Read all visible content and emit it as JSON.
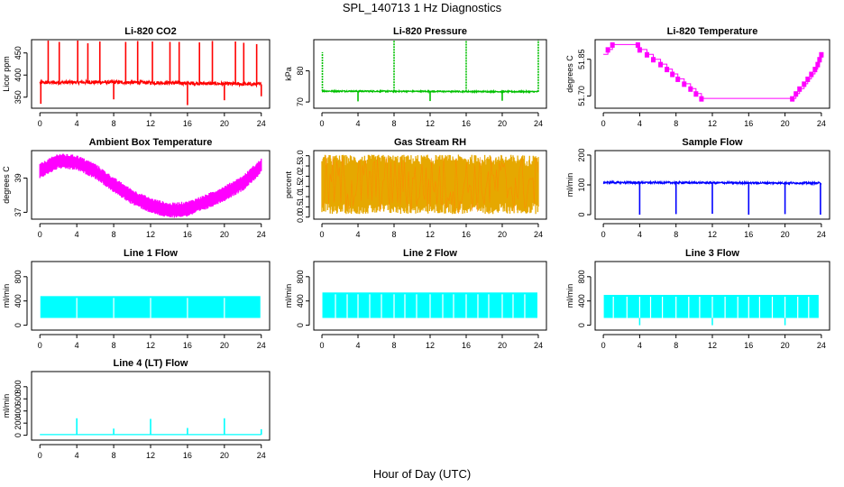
{
  "page": {
    "title": "SPL_140713  1 Hz Diagnostics",
    "xlabel": "Hour of Day (UTC)"
  },
  "chart_data": [
    {
      "id": "co2",
      "type": "line",
      "title": "Li-820 CO2",
      "ylabel": "Licor ppm",
      "color": "#ff0000",
      "xlim": [
        0,
        24
      ],
      "ylim": [
        325,
        480
      ],
      "xticks": [
        0,
        4,
        8,
        12,
        16,
        20,
        24
      ],
      "yticks": [
        350,
        400,
        450
      ],
      "baseline": [
        [
          0,
          383
        ],
        [
          6,
          384
        ],
        [
          12,
          383
        ],
        [
          18,
          381
        ],
        [
          24,
          379
        ]
      ],
      "noise": 4,
      "spikes_up": [
        [
          0.9,
          478
        ],
        [
          2.1,
          475
        ],
        [
          4.1,
          478
        ],
        [
          5.2,
          472
        ],
        [
          6.5,
          476
        ],
        [
          9.3,
          475
        ],
        [
          10.6,
          477
        ],
        [
          12.2,
          476
        ],
        [
          14.1,
          475
        ],
        [
          15.1,
          475
        ],
        [
          17.3,
          474
        ],
        [
          18.7,
          477
        ],
        [
          21.2,
          476
        ],
        [
          22.1,
          473
        ],
        [
          23.5,
          470
        ]
      ],
      "spikes_down": [
        [
          0.1,
          335
        ],
        [
          8.0,
          345
        ],
        [
          16.0,
          332
        ],
        [
          20.0,
          343
        ],
        [
          24.0,
          352
        ]
      ]
    },
    {
      "id": "pressure",
      "type": "line",
      "title": "Li-820 Pressure",
      "ylabel": "kPa",
      "color": "#00c000",
      "xlim": [
        0,
        24
      ],
      "ylim": [
        68,
        90
      ],
      "xticks": [
        0,
        4,
        8,
        12,
        16,
        20,
        24
      ],
      "yticks": [
        70,
        80
      ],
      "baseline": [
        [
          0,
          73.5
        ],
        [
          24,
          73.3
        ]
      ],
      "noise": 0.2,
      "spikes_up": [
        [
          0.05,
          86
        ],
        [
          8.0,
          90
        ],
        [
          16.0,
          90
        ],
        [
          24.0,
          90
        ]
      ],
      "spikes_down": [
        [
          4.0,
          70.2
        ],
        [
          12.0,
          70.3
        ],
        [
          20.0,
          70.4
        ]
      ]
    },
    {
      "id": "li820temp",
      "type": "step",
      "title": "Li-820 Temperature",
      "ylabel": "degrees C",
      "color": "#ff00ff",
      "xlim": [
        0,
        24
      ],
      "ylim": [
        51.65,
        51.93
      ],
      "xticks": [
        0,
        4,
        8,
        12,
        16,
        20,
        24
      ],
      "yticks": [
        51.7,
        51.85
      ],
      "ytick_labels": [
        "51.70",
        "51.85"
      ],
      "points": [
        [
          0,
          51.87
        ],
        [
          0.5,
          51.89
        ],
        [
          1,
          51.91
        ],
        [
          3.8,
          51.91
        ],
        [
          4,
          51.89
        ],
        [
          4.8,
          51.87
        ],
        [
          5.5,
          51.85
        ],
        [
          6.3,
          51.83
        ],
        [
          7,
          51.81
        ],
        [
          7.6,
          51.79
        ],
        [
          8.2,
          51.77
        ],
        [
          8.9,
          51.75
        ],
        [
          9.6,
          51.73
        ],
        [
          10.2,
          51.71
        ],
        [
          10.8,
          51.69
        ],
        [
          20.8,
          51.69
        ],
        [
          21.2,
          51.71
        ],
        [
          21.6,
          51.73
        ],
        [
          22.1,
          51.75
        ],
        [
          22.5,
          51.77
        ],
        [
          22.9,
          51.79
        ],
        [
          23.3,
          51.81
        ],
        [
          23.6,
          51.83
        ],
        [
          23.8,
          51.85
        ],
        [
          24,
          51.87
        ]
      ]
    },
    {
      "id": "ambient",
      "type": "band",
      "title": "Ambient Box Temperature",
      "ylabel": "degrees C",
      "color": "#ff00ff",
      "xlim": [
        0,
        24
      ],
      "ylim": [
        36.6,
        40.6
      ],
      "xticks": [
        0,
        4,
        8,
        12,
        16,
        20,
        24
      ],
      "yticks": [
        37,
        39
      ],
      "center": [
        [
          0,
          39.4
        ],
        [
          2,
          40.0
        ],
        [
          4,
          39.9
        ],
        [
          6,
          39.4
        ],
        [
          8,
          38.6
        ],
        [
          10,
          37.9
        ],
        [
          12,
          37.4
        ],
        [
          14,
          37.1
        ],
        [
          16,
          37.2
        ],
        [
          18,
          37.6
        ],
        [
          20,
          38.1
        ],
        [
          22,
          38.7
        ],
        [
          24,
          39.7
        ]
      ],
      "half_width": 0.45
    },
    {
      "id": "rh",
      "type": "band",
      "title": "Gas Stream RH",
      "ylabel": "percent",
      "color": "#e6a800",
      "accent": "#ff8800",
      "xlim": [
        0,
        24
      ],
      "ylim": [
        -0.1,
        3.25
      ],
      "xticks": [
        0,
        4,
        8,
        12,
        16,
        20,
        24
      ],
      "yticks": [
        0.0,
        0.5,
        1.0,
        1.5,
        2.0,
        2.5,
        3.0
      ],
      "ytick_labels": [
        "0.0",
        "0.5",
        "1.0",
        "1.5",
        "2.0",
        "2.5",
        "3.0"
      ],
      "center": [
        [
          0,
          1.6
        ],
        [
          24,
          1.6
        ]
      ],
      "half_width": 1.45
    },
    {
      "id": "sampleflow",
      "type": "line",
      "title": "Sample Flow",
      "ylabel": "ml/min",
      "color": "#0000ff",
      "xlim": [
        0,
        24
      ],
      "ylim": [
        -15,
        215
      ],
      "xticks": [
        0,
        4,
        8,
        12,
        16,
        20,
        24
      ],
      "yticks": [
        0,
        100,
        200
      ],
      "baseline": [
        [
          0,
          108
        ],
        [
          24,
          106
        ]
      ],
      "noise": 3,
      "spikes_up": [],
      "spikes_down": [
        [
          4.0,
          0
        ],
        [
          8.0,
          2
        ],
        [
          12.0,
          3
        ],
        [
          16.0,
          0
        ],
        [
          20.0,
          2
        ],
        [
          23.9,
          0
        ]
      ]
    },
    {
      "id": "line1",
      "type": "block",
      "title": "Line 1 Flow",
      "ylabel": "ml/min",
      "color": "#00ffff",
      "xlim": [
        0,
        24
      ],
      "ylim": [
        -80,
        1050
      ],
      "xticks": [
        0,
        4,
        8,
        12,
        16,
        20,
        24
      ],
      "yticks": [
        0,
        400,
        800
      ],
      "lo": 120,
      "hi": 480,
      "x_range": [
        0.05,
        23.9
      ],
      "gaps": [
        4.0,
        8.0,
        12.0,
        16.0,
        20.0
      ],
      "dips": []
    },
    {
      "id": "line2",
      "type": "block",
      "title": "Line 2 Flow",
      "ylabel": "ml/min",
      "color": "#00ffff",
      "xlim": [
        0,
        24
      ],
      "ylim": [
        -80,
        1050
      ],
      "xticks": [
        0,
        4,
        8,
        12,
        16,
        20,
        24
      ],
      "yticks": [
        0,
        400,
        800
      ],
      "lo": 120,
      "hi": 540,
      "x_range": [
        0.05,
        23.9
      ],
      "gaps": [
        1.5,
        2.8,
        4.0,
        5.3,
        6.6,
        8.0,
        9.2,
        10.5,
        12.0,
        13.4,
        14.6,
        16.0,
        17.3,
        18.5,
        20.0,
        21.2,
        22.5
      ],
      "dips": []
    },
    {
      "id": "line3",
      "type": "block",
      "title": "Line 3 Flow",
      "ylabel": "ml/min",
      "color": "#00ffff",
      "xlim": [
        0,
        24
      ],
      "ylim": [
        -80,
        1050
      ],
      "xticks": [
        0,
        4,
        8,
        12,
        16,
        20,
        24
      ],
      "yticks": [
        0,
        400,
        800
      ],
      "lo": 120,
      "hi": 500,
      "x_range": [
        0.05,
        23.7
      ],
      "gaps": [
        1.1,
        2.6,
        4.0,
        5.2,
        6.5,
        8.0,
        9.4,
        10.6,
        12.0,
        13.4,
        14.8,
        16.0,
        17.2,
        18.6,
        20.0,
        21.4,
        22.6
      ],
      "dips": [
        4.0,
        12.0,
        20.0
      ]
    },
    {
      "id": "line4",
      "type": "line",
      "title": "Line 4 (LT) Flow",
      "ylabel": "ml/min",
      "color": "#00ffff",
      "xlim": [
        0,
        24
      ],
      "ylim": [
        -80,
        1050
      ],
      "xticks": [
        0,
        4,
        8,
        12,
        16,
        20,
        24
      ],
      "yticks": [
        0,
        200,
        400,
        600,
        800
      ],
      "baseline": [
        [
          0,
          10
        ],
        [
          24,
          10
        ]
      ],
      "noise": 0,
      "spikes_up": [
        [
          4.0,
          280
        ],
        [
          8.0,
          110
        ],
        [
          12.0,
          270
        ],
        [
          16.0,
          120
        ],
        [
          20.0,
          280
        ],
        [
          24.0,
          100
        ]
      ],
      "spikes_down": []
    }
  ]
}
